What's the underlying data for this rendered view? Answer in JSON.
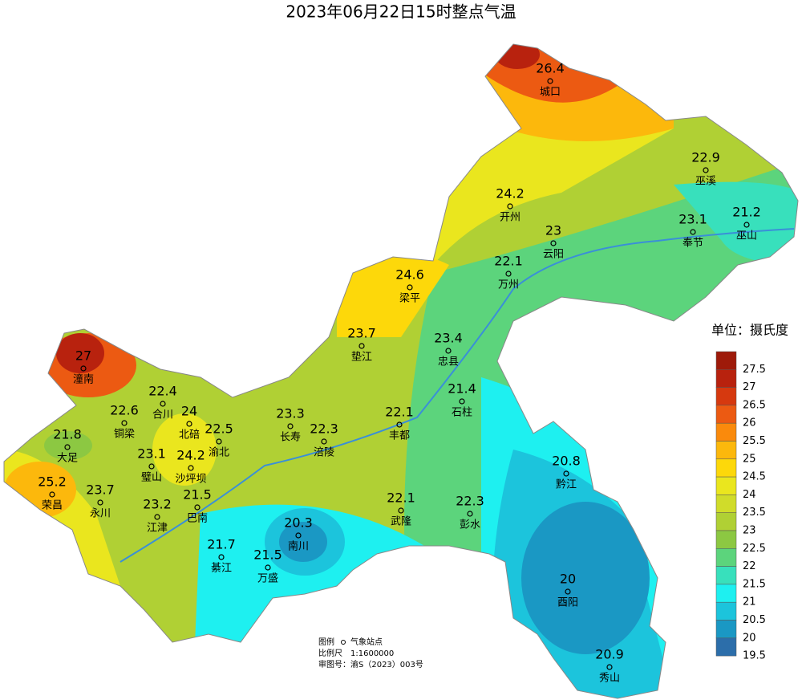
{
  "title": "2023年06月22日15时整点气温",
  "legend": {
    "title": "单位：摄氏度",
    "items": [
      {
        "label": "27.5",
        "color": "#9e1a0a"
      },
      {
        "label": "27",
        "color": "#b8220e"
      },
      {
        "label": "26.5",
        "color": "#d6390f"
      },
      {
        "label": "26",
        "color": "#ec5a12"
      },
      {
        "label": "25.5",
        "color": "#fa8a0c"
      },
      {
        "label": "25",
        "color": "#fcb80c"
      },
      {
        "label": "24.5",
        "color": "#fdd80a"
      },
      {
        "label": "24",
        "color": "#eae61e"
      },
      {
        "label": "23.5",
        "color": "#d0dc2a"
      },
      {
        "label": "23",
        "color": "#b0d034"
      },
      {
        "label": "22.5",
        "color": "#8cc842"
      },
      {
        "label": "22",
        "color": "#5cd47c"
      },
      {
        "label": "21.5",
        "color": "#38e0bc"
      },
      {
        "label": "21",
        "color": "#1ef0f0"
      },
      {
        "label": "20.5",
        "color": "#1cc4dc"
      },
      {
        "label": "20",
        "color": "#1a98c4"
      },
      {
        "label": "19.5",
        "color": "#2c6eaa"
      }
    ]
  },
  "stations": [
    {
      "name": "城口",
      "value": 26.4
    },
    {
      "name": "巫溪",
      "value": 22.9
    },
    {
      "name": "开州",
      "value": 24.2
    },
    {
      "name": "巫山",
      "value": 21.2
    },
    {
      "name": "云阳",
      "value": 23
    },
    {
      "name": "奉节",
      "value": 23.1
    },
    {
      "name": "万州",
      "value": 22.1
    },
    {
      "name": "梁平",
      "value": 24.6
    },
    {
      "name": "垫江",
      "value": 23.7
    },
    {
      "name": "忠县",
      "value": 23.4
    },
    {
      "name": "潼南",
      "value": 27
    },
    {
      "name": "合川",
      "value": 22.4
    },
    {
      "name": "铜梁",
      "value": 22.6
    },
    {
      "name": "北碚",
      "value": 24
    },
    {
      "name": "渝北",
      "value": 22.5
    },
    {
      "name": "长寿",
      "value": 23.3
    },
    {
      "name": "涪陵",
      "value": 22.3
    },
    {
      "name": "丰都",
      "value": 22.1
    },
    {
      "name": "石柱",
      "value": 21.4
    },
    {
      "name": "大足",
      "value": 21.8
    },
    {
      "name": "璧山",
      "value": 23.1
    },
    {
      "name": "沙坪坝",
      "value": 24.2
    },
    {
      "name": "荣昌",
      "value": 25.2
    },
    {
      "name": "永川",
      "value": 23.7
    },
    {
      "name": "江津",
      "value": 23.2
    },
    {
      "name": "巴南",
      "value": 21.5
    },
    {
      "name": "黔江",
      "value": 20.8
    },
    {
      "name": "武隆",
      "value": 22.1
    },
    {
      "name": "彭水",
      "value": 22.3
    },
    {
      "name": "南川",
      "value": 20.3
    },
    {
      "name": "綦江",
      "value": 21.7
    },
    {
      "name": "万盛",
      "value": 21.5
    },
    {
      "name": "酉阳",
      "value": 20
    },
    {
      "name": "秀山",
      "value": 20.9
    }
  ],
  "footnote": {
    "legend_label": "图例",
    "legend_item": "气象站点",
    "scale_label": "比例尺",
    "scale": "1:1600000",
    "approval": "审图号：渝S（2023）003号"
  }
}
